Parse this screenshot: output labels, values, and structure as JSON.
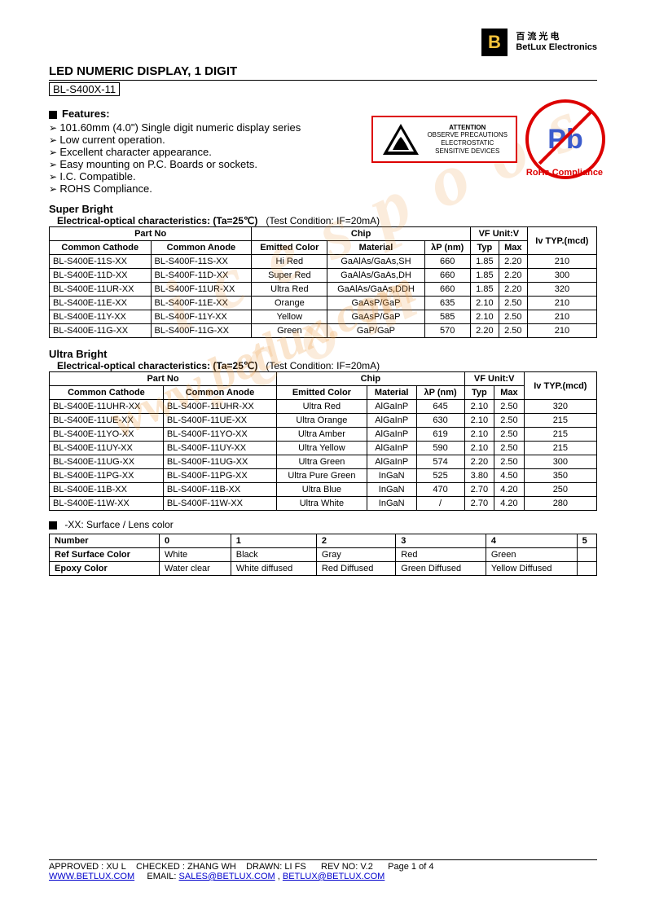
{
  "logo": {
    "letter": "B",
    "chinese": "百 流 光 电",
    "name": "BetLux Electronics"
  },
  "header": {
    "title": "LED NUMERIC DISPLAY, 1 DIGIT",
    "model": "BL-S400X-11"
  },
  "features": {
    "heading": "Features:",
    "items": [
      "101.60mm (4.0\") Single digit numeric display series",
      "Low current operation.",
      "Excellent character appearance.",
      "Easy mounting on P.C. Boards or sockets.",
      "I.C. Compatible.",
      "ROHS Compliance."
    ]
  },
  "esd": {
    "title": "ATTENTION",
    "line1": "OBSERVE PRECAUTIONS",
    "line2": "ELECTROSTATIC",
    "line3": "SENSITIVE DEVICES"
  },
  "pb": {
    "symbol": "Pb",
    "label": "RoHs Compliance"
  },
  "superBright": {
    "title": "Super Bright",
    "cond_label": "Electrical-optical characteristics: (Ta=25℃)",
    "cond_test": "(Test Condition: IF=20mA)",
    "headers": {
      "partno": "Part No",
      "cc": "Common Cathode",
      "ca": "Common Anode",
      "chip": "Chip",
      "emitted": "Emitted Color",
      "material": "Material",
      "lambda": "λP (nm)",
      "vf": "VF Unit:V",
      "typ": "Typ",
      "max": "Max",
      "iv": "Iv TYP.(mcd)"
    },
    "rows": [
      {
        "cc": "BL-S400E-11S-XX",
        "ca": "BL-S400F-11S-XX",
        "color": "Hi Red",
        "mat": "GaAlAs/GaAs,SH",
        "lp": "660",
        "typ": "1.85",
        "max": "2.20",
        "iv": "210"
      },
      {
        "cc": "BL-S400E-11D-XX",
        "ca": "BL-S400F-11D-XX",
        "color": "Super Red",
        "mat": "GaAlAs/GaAs,DH",
        "lp": "660",
        "typ": "1.85",
        "max": "2.20",
        "iv": "300"
      },
      {
        "cc": "BL-S400E-11UR-XX",
        "ca": "BL-S400F-11UR-XX",
        "color": "Ultra Red",
        "mat": "GaAlAs/GaAs,DDH",
        "lp": "660",
        "typ": "1.85",
        "max": "2.20",
        "iv": "320"
      },
      {
        "cc": "BL-S400E-11E-XX",
        "ca": "BL-S400F-11E-XX",
        "color": "Orange",
        "mat": "GaAsP/GaP",
        "lp": "635",
        "typ": "2.10",
        "max": "2.50",
        "iv": "210"
      },
      {
        "cc": "BL-S400E-11Y-XX",
        "ca": "BL-S400F-11Y-XX",
        "color": "Yellow",
        "mat": "GaAsP/GaP",
        "lp": "585",
        "typ": "2.10",
        "max": "2.50",
        "iv": "210"
      },
      {
        "cc": "BL-S400E-11G-XX",
        "ca": "BL-S400F-11G-XX",
        "color": "Green",
        "mat": "GaP/GaP",
        "lp": "570",
        "typ": "2.20",
        "max": "2.50",
        "iv": "210"
      }
    ]
  },
  "ultraBright": {
    "title": "Ultra Bright",
    "cond_label": "Electrical-optical characteristics: (Ta=25℃)",
    "cond_test": "(Test Condition: IF=20mA)",
    "headers": {
      "partno": "Part No",
      "cc": "Common Cathode",
      "ca": "Common Anode",
      "chip": "Chip",
      "emitted": "Emitted Color",
      "material": "Material",
      "lambda": "λP (nm)",
      "vf": "VF Unit:V",
      "typ": "Typ",
      "max": "Max",
      "iv": "Iv TYP.(mcd)"
    },
    "rows": [
      {
        "cc": "BL-S400E-11UHR-XX",
        "ca": "BL-S400F-11UHR-XX",
        "color": "Ultra Red",
        "mat": "AlGaInP",
        "lp": "645",
        "typ": "2.10",
        "max": "2.50",
        "iv": "320"
      },
      {
        "cc": "BL-S400E-11UE-XX",
        "ca": "BL-S400F-11UE-XX",
        "color": "Ultra Orange",
        "mat": "AlGaInP",
        "lp": "630",
        "typ": "2.10",
        "max": "2.50",
        "iv": "215"
      },
      {
        "cc": "BL-S400E-11YO-XX",
        "ca": "BL-S400F-11YO-XX",
        "color": "Ultra Amber",
        "mat": "AlGaInP",
        "lp": "619",
        "typ": "2.10",
        "max": "2.50",
        "iv": "215"
      },
      {
        "cc": "BL-S400E-11UY-XX",
        "ca": "BL-S400F-11UY-XX",
        "color": "Ultra Yellow",
        "mat": "AlGaInP",
        "lp": "590",
        "typ": "2.10",
        "max": "2.50",
        "iv": "215"
      },
      {
        "cc": "BL-S400E-11UG-XX",
        "ca": "BL-S400F-11UG-XX",
        "color": "Ultra Green",
        "mat": "AlGaInP",
        "lp": "574",
        "typ": "2.20",
        "max": "2.50",
        "iv": "300"
      },
      {
        "cc": "BL-S400E-11PG-XX",
        "ca": "BL-S400F-11PG-XX",
        "color": "Ultra Pure Green",
        "mat": "InGaN",
        "lp": "525",
        "typ": "3.80",
        "max": "4.50",
        "iv": "350"
      },
      {
        "cc": "BL-S400E-11B-XX",
        "ca": "BL-S400F-11B-XX",
        "color": "Ultra Blue",
        "mat": "InGaN",
        "lp": "470",
        "typ": "2.70",
        "max": "4.20",
        "iv": "250"
      },
      {
        "cc": "BL-S400E-11W-XX",
        "ca": "BL-S400F-11W-XX",
        "color": "Ultra White",
        "mat": "InGaN",
        "lp": "/",
        "typ": "2.70",
        "max": "4.20",
        "iv": "280"
      }
    ]
  },
  "surface": {
    "note": "-XX: Surface / Lens color",
    "headers": [
      "Number",
      "0",
      "1",
      "2",
      "3",
      "4",
      "5"
    ],
    "row1_label": "Ref Surface Color",
    "row1": [
      "White",
      "Black",
      "Gray",
      "Red",
      "Green",
      ""
    ],
    "row2_label": "Epoxy Color",
    "row2": [
      "Water clear",
      "White diffused",
      "Red Diffused",
      "Green Diffused",
      "Yellow Diffused",
      ""
    ]
  },
  "footer": {
    "approved_label": "APPROVED :",
    "approved": "XU L",
    "checked_label": "CHECKED :",
    "checked": "ZHANG WH",
    "drawn_label": "DRAWN:",
    "drawn": "LI FS",
    "rev_label": "REV NO:",
    "rev": "V.2",
    "page": "Page 1 of 4",
    "url": "WWW.BETLUX.COM",
    "email_label": "EMAIL:",
    "email1": "SALES@BETLUX.COM",
    "email2": "BETLUX@BETLUX.COM"
  },
  "watermarks": {
    "wm1": "www.betlux.com",
    "wm2": "i c e s p o o s . c o m"
  }
}
